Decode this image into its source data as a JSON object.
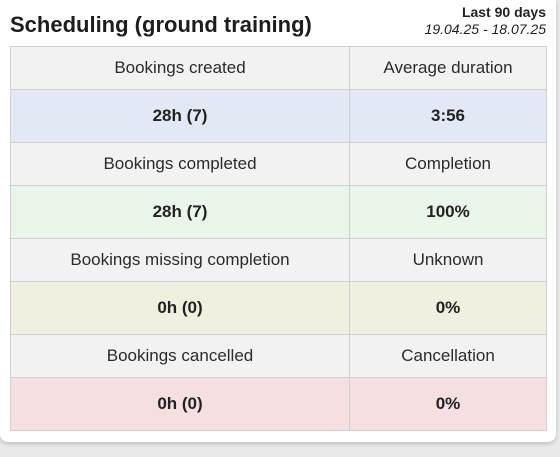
{
  "widget": {
    "title": "Scheduling (ground training)",
    "period_label": "Last 90 days",
    "period_range": "19.04.25 - 18.07.25"
  },
  "rows": [
    {
      "left_label": "Bookings created",
      "right_label": "Average duration",
      "left_value": "28h (7)",
      "right_value": "3:56",
      "color": "#e2e9f5"
    },
    {
      "left_label": "Bookings completed",
      "right_label": "Completion",
      "left_value": "28h (7)",
      "right_value": "100%",
      "color": "#eaf5ea"
    },
    {
      "left_label": "Bookings missing completion",
      "right_label": "Unknown",
      "left_value": "0h (0)",
      "right_value": "0%",
      "color": "#f1efdf"
    },
    {
      "left_label": "Bookings cancelled",
      "right_label": "Cancellation",
      "left_value": "0h (0)",
      "right_value": "0%",
      "color": "#f5dfe1"
    }
  ]
}
